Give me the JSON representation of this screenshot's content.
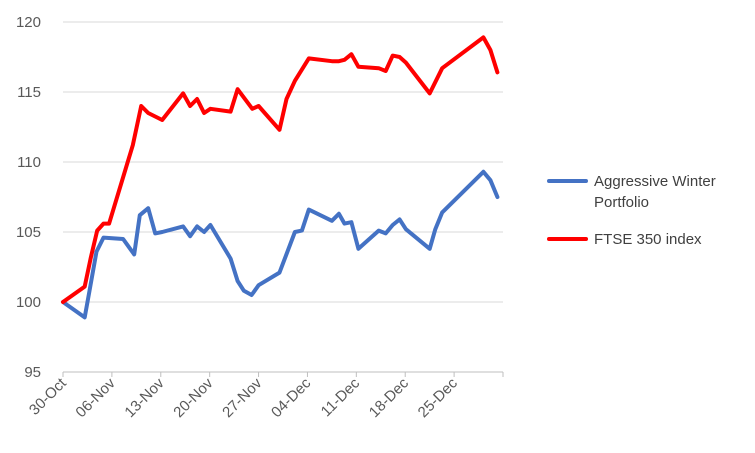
{
  "chart_data": {
    "type": "line",
    "title": "",
    "xlabel": "",
    "ylabel": "",
    "ylim": [
      95,
      120
    ],
    "yticks": [
      "95",
      "100",
      "105",
      "110",
      "115",
      "120"
    ],
    "xticks": [
      "30-Oct",
      "06-Nov",
      "13-Nov",
      "20-Nov",
      "27-Nov",
      "04-Dec",
      "11-Dec",
      "18-Dec",
      "25-Dec"
    ],
    "xtick_days": [
      0,
      7,
      14,
      21,
      28,
      35,
      42,
      49,
      56
    ],
    "xlim_days": [
      0,
      63
    ],
    "grid": "horizontal",
    "legend": "right",
    "series": [
      {
        "name": "Aggressive Winter Portfolio",
        "name_lines": [
          "Aggressive Winter",
          "Portfolio"
        ],
        "color": "#4472C4",
        "x": [
          0,
          3.1,
          3.8,
          4.8,
          5.8,
          8.6,
          10.2,
          11.0,
          12.2,
          13.2,
          14.2,
          17.2,
          18.2,
          19.2,
          20.2,
          21.1,
          24.0,
          25.0,
          25.9,
          27.0,
          28.0,
          31.0,
          33.2,
          34.2,
          35.2,
          38.5,
          39.5,
          40.3,
          41.3,
          42.3,
          45.2,
          46.2,
          47.2,
          48.2,
          49.1,
          52.5,
          53.3,
          54.3,
          60.2,
          61.2,
          62.2
        ],
        "y": [
          100,
          98.9,
          100.8,
          103.6,
          104.6,
          104.5,
          103.4,
          106.2,
          106.7,
          104.9,
          105.0,
          105.4,
          104.7,
          105.4,
          105.0,
          105.5,
          103.1,
          101.5,
          100.8,
          100.5,
          101.2,
          102.1,
          105.0,
          105.1,
          106.6,
          105.8,
          106.3,
          105.6,
          105.7,
          103.8,
          105.1,
          104.9,
          105.5,
          105.9,
          105.2,
          103.8,
          105.2,
          106.4,
          109.3,
          108.7,
          107.5
        ]
      },
      {
        "name": "FTSE 350 index",
        "name_lines": [
          "FTSE 350 index"
        ],
        "color": "#FF0000",
        "x": [
          0,
          3.1,
          4.0,
          4.9,
          5.8,
          6.6,
          10.0,
          11.2,
          12.2,
          14.2,
          17.2,
          18.2,
          19.2,
          20.2,
          21.1,
          24.0,
          25.0,
          27.1,
          28.0,
          31.0,
          32.0,
          33.2,
          35.2,
          38.5,
          39.5,
          40.3,
          41.3,
          42.3,
          45.2,
          46.2,
          47.2,
          48.2,
          49.1,
          52.5,
          54.3,
          60.2,
          61.2,
          62.2
        ],
        "y": [
          100,
          101.1,
          103.2,
          105.1,
          105.6,
          105.6,
          111.2,
          114.0,
          113.5,
          113.0,
          114.9,
          114.0,
          114.5,
          113.5,
          113.8,
          113.6,
          115.2,
          113.8,
          114.0,
          112.3,
          114.5,
          115.8,
          117.4,
          117.2,
          117.2,
          117.3,
          117.7,
          116.8,
          116.7,
          116.5,
          117.6,
          117.5,
          117.1,
          114.9,
          116.7,
          118.9,
          118.0,
          116.4
        ]
      }
    ]
  }
}
